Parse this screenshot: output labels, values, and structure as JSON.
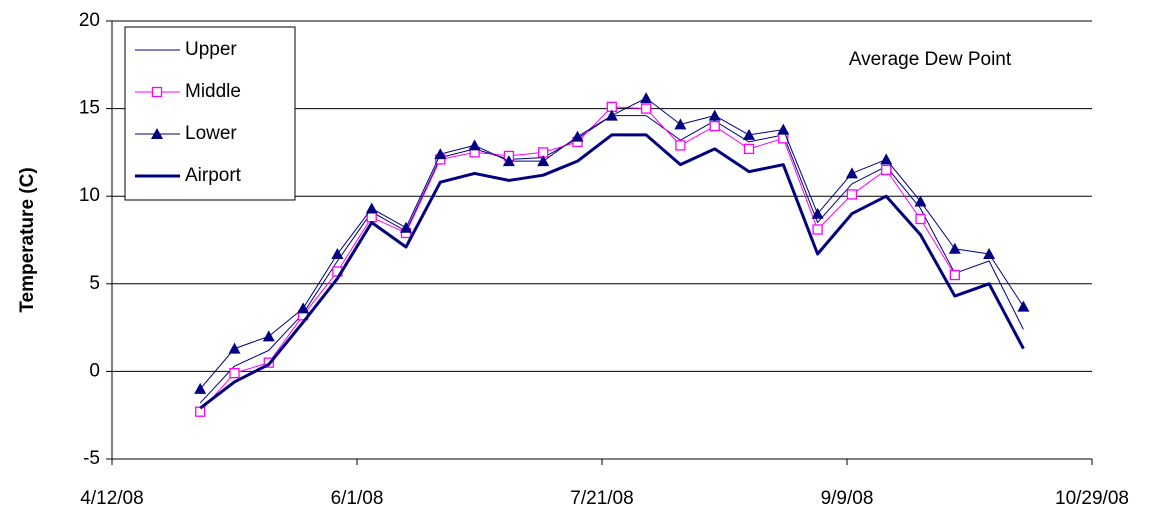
{
  "chart_data": {
    "type": "line",
    "annotation": "Average Dew Point",
    "y_label": "Temperature (C)",
    "x": [
      "4/30/08",
      "5/7/08",
      "5/14/08",
      "5/21/08",
      "5/28/08",
      "6/4/08",
      "6/11/08",
      "6/18/08",
      "6/25/08",
      "7/2/08",
      "7/9/08",
      "7/16/08",
      "7/23/08",
      "7/30/08",
      "8/6/08",
      "8/13/08",
      "8/20/08",
      "8/27/08",
      "9/3/08",
      "9/10/08",
      "9/17/08",
      "9/24/08",
      "10/1/08",
      "10/8/08",
      "10/15/08"
    ],
    "series": [
      {
        "name": "Upper",
        "color": "#000080",
        "marker": "none",
        "width": 1,
        "values": [
          -1.8,
          0.3,
          1.2,
          3.3,
          6.3,
          9.1,
          8.0,
          12.2,
          12.7,
          12.1,
          12.2,
          13.3,
          14.6,
          14.6,
          13.2,
          14.3,
          13.1,
          13.5,
          8.5,
          10.7,
          11.7,
          9.3,
          5.6,
          6.3,
          2.4
        ]
      },
      {
        "name": "Middle",
        "color": "#ff00ff",
        "marker": "square",
        "width": 1,
        "values": [
          -2.3,
          -0.1,
          0.5,
          3.2,
          5.7,
          8.8,
          7.9,
          12.1,
          12.5,
          12.3,
          12.5,
          13.1,
          15.1,
          15.0,
          12.9,
          14.0,
          12.7,
          13.3,
          8.1,
          10.1,
          11.5,
          8.7,
          5.5,
          null,
          null
        ]
      },
      {
        "name": "Lower",
        "color": "#000080",
        "marker": "triangle",
        "width": 1,
        "values": [
          -1.0,
          1.3,
          2.0,
          3.6,
          6.7,
          9.3,
          8.2,
          12.4,
          12.9,
          12.0,
          12.0,
          13.4,
          14.6,
          15.6,
          14.1,
          14.6,
          13.5,
          13.8,
          9.0,
          11.3,
          12.1,
          9.7,
          7.0,
          6.7,
          3.7
        ]
      },
      {
        "name": "Airport",
        "color": "#000080",
        "marker": "none",
        "width": 3,
        "values": [
          -2.1,
          -0.6,
          0.4,
          2.8,
          5.3,
          8.5,
          7.1,
          10.8,
          11.3,
          10.9,
          11.2,
          12.0,
          13.5,
          13.5,
          11.8,
          12.7,
          11.4,
          11.8,
          6.7,
          9.0,
          10.0,
          7.8,
          4.3,
          5.0,
          1.3
        ]
      }
    ],
    "xlim": [
      "4/12/08",
      "10/29/08"
    ],
    "xticks": [
      "4/12/08",
      "6/1/08",
      "7/21/08",
      "9/9/08",
      "10/29/08"
    ],
    "ylim": [
      -5,
      20
    ],
    "yticks": [
      -5,
      0,
      5,
      10,
      15,
      20
    ],
    "grid": true,
    "legend": "upper-left"
  }
}
